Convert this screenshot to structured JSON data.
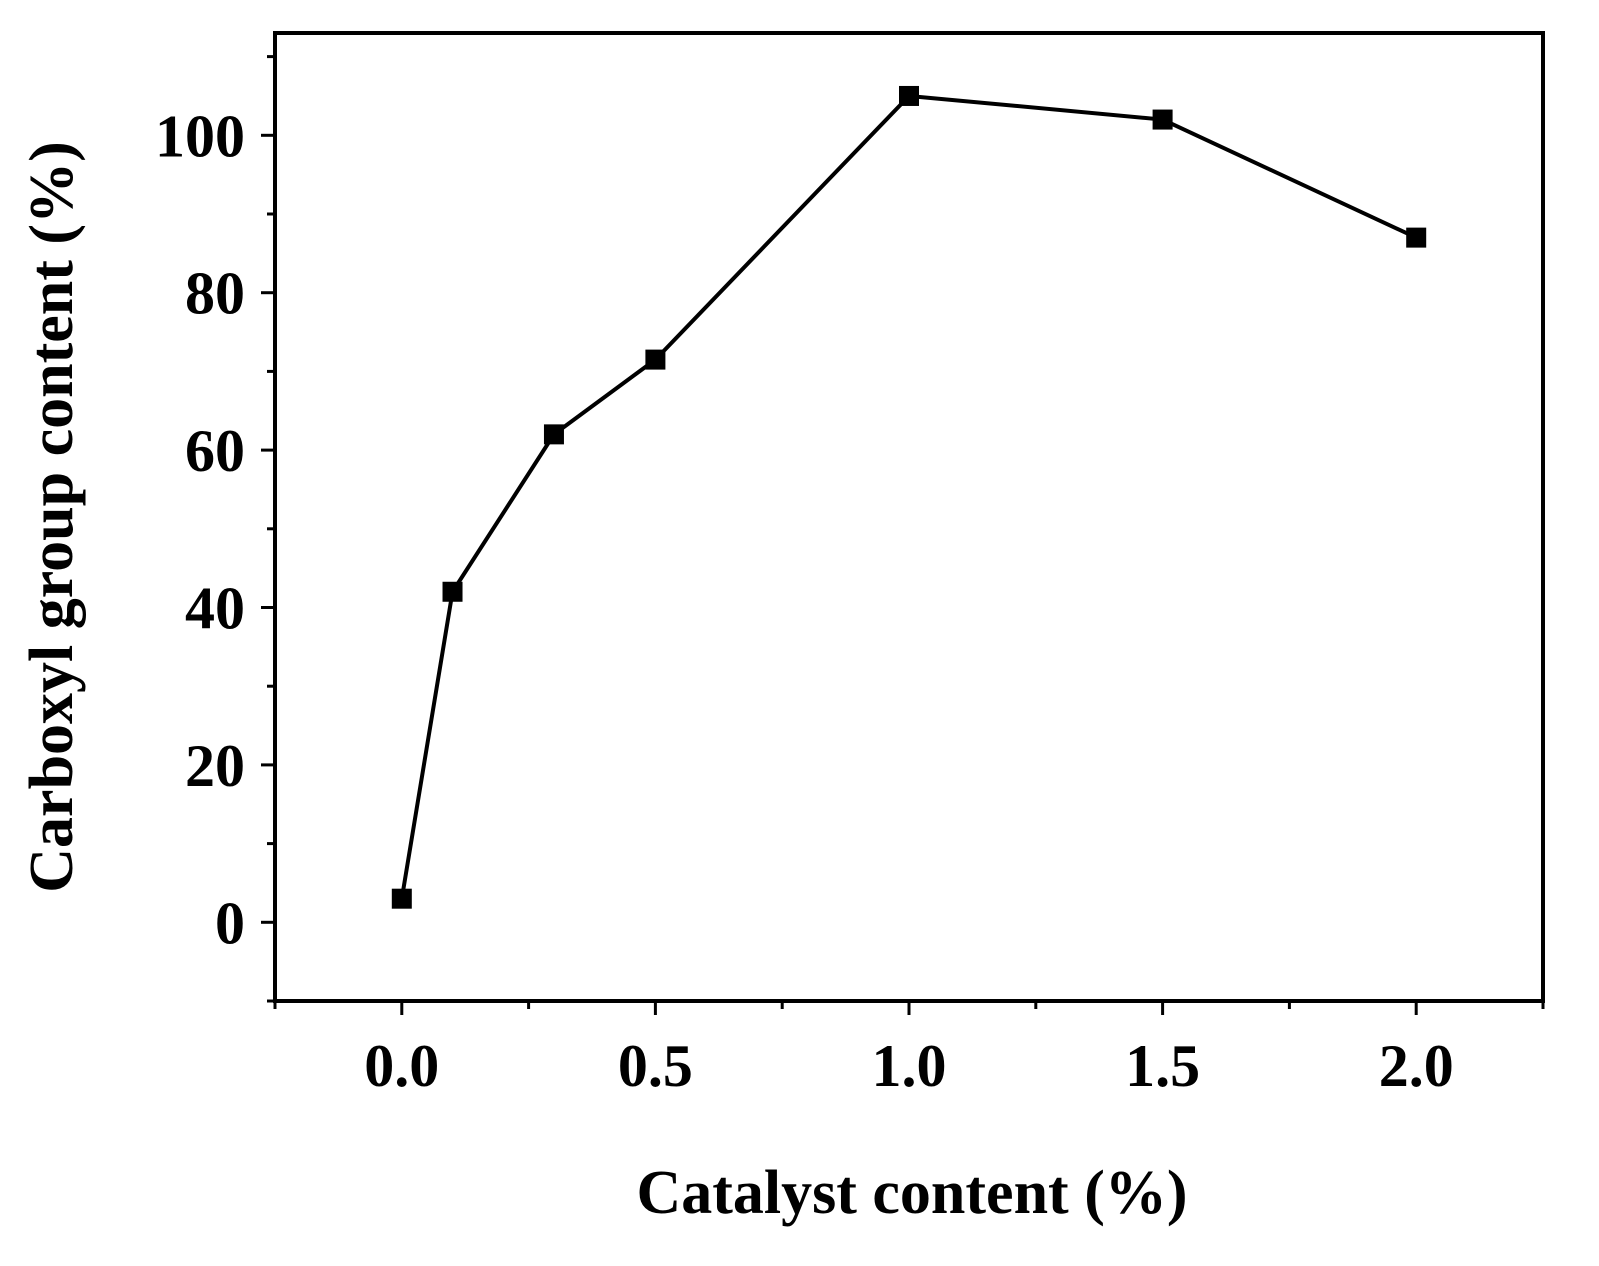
{
  "chart_data": {
    "type": "line",
    "title": "",
    "xlabel": "Catalyst content (%)",
    "ylabel": "Carboxyl group content (%)",
    "xlim": [
      -0.25,
      2.25
    ],
    "ylim": [
      -10,
      113
    ],
    "x_ticks": [
      0.0,
      0.5,
      1.0,
      1.5,
      2.0
    ],
    "x_tick_labels": [
      "0.0",
      "0.5",
      "1.0",
      "1.5",
      "2.0"
    ],
    "x_minor_ticks": [
      -0.25,
      0.25,
      0.75,
      1.25,
      1.75,
      2.25
    ],
    "y_ticks": [
      0,
      20,
      40,
      60,
      80,
      100
    ],
    "y_tick_labels": [
      "0",
      "20",
      "40",
      "60",
      "80",
      "100"
    ],
    "y_minor_ticks": [
      -10,
      10,
      30,
      50,
      70,
      90,
      110
    ],
    "grid": false,
    "legend": "none",
    "series": [
      {
        "marker": "square",
        "color": "#000000",
        "x": [
          0.0,
          0.1,
          0.3,
          0.5,
          1.0,
          1.5,
          2.0
        ],
        "y": [
          3,
          42,
          62,
          71.5,
          105,
          102,
          87
        ]
      }
    ]
  }
}
